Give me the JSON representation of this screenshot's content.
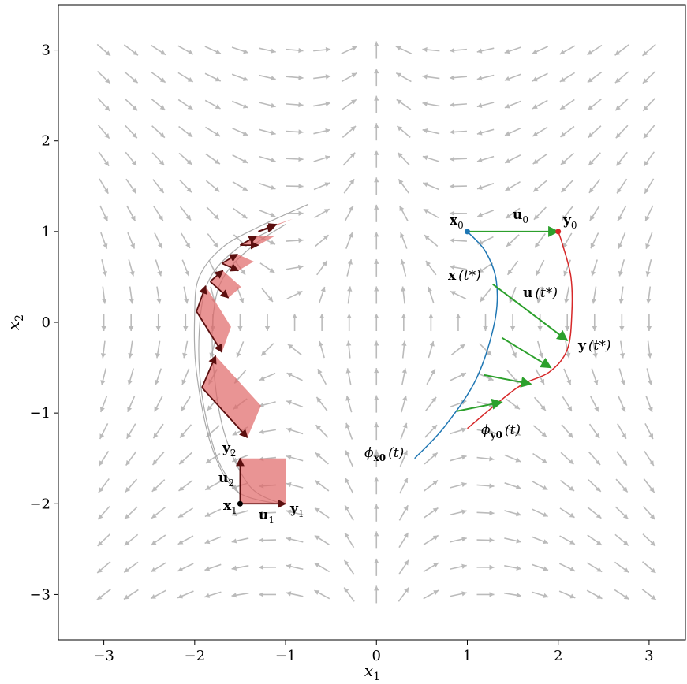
{
  "chart_data": {
    "type": "quiver",
    "xlabel": "x1",
    "ylabel": "x2",
    "xlim": [
      -3.5,
      3.4
    ],
    "ylim": [
      -3.5,
      3.5
    ],
    "xticks": [
      -3,
      -2,
      -1,
      0,
      1,
      2,
      3
    ],
    "yticks": [
      -3,
      -2,
      -1,
      0,
      1,
      2,
      3
    ],
    "xtick_labels": [
      "−3",
      "−2",
      "−1",
      "0",
      "1",
      "2",
      "3"
    ],
    "ytick_labels": [
      "−3",
      "−2",
      "−1",
      "0",
      "1",
      "2",
      "3"
    ],
    "grid": false,
    "colors": {
      "vector_field": "#bbbbbb",
      "trajectory_x": "#1f77b4",
      "trajectory_y": "#d62728",
      "displacement": "#2ca02c",
      "parallelogram_fill": "#e06666",
      "frame_vectors": "#5b0f0f",
      "gray_trajectory": "#aaaaaa"
    },
    "vector_field": {
      "x_start": -3,
      "x_end": 3,
      "y_start": -3,
      "y_end": 3,
      "n": 21,
      "field": "u = -1.1*x1*x2 ; v = 1 - x1^2 - 0.15*x2 (normalized)"
    },
    "series": [
      {
        "name": "phi_x0",
        "points": [
          [
            0.42,
            -1.5
          ],
          [
            0.75,
            -1.15
          ],
          [
            1.1,
            -0.62
          ],
          [
            1.3,
            0.0
          ],
          [
            1.32,
            0.45
          ],
          [
            1.2,
            0.78
          ],
          [
            1.0,
            1.0
          ]
        ]
      },
      {
        "name": "phi_y0",
        "points": [
          [
            1.0,
            -1.17
          ],
          [
            1.55,
            -0.72
          ],
          [
            1.9,
            -0.55
          ],
          [
            2.1,
            -0.3
          ],
          [
            2.15,
            0.1
          ],
          [
            2.14,
            0.5
          ],
          [
            2.05,
            0.85
          ],
          [
            2.0,
            1.0
          ]
        ]
      },
      {
        "name": "gray_a",
        "points": [
          [
            -1.1,
            -2.0
          ],
          [
            -1.55,
            -1.85
          ],
          [
            -1.82,
            -1.35
          ],
          [
            -1.98,
            -0.55
          ],
          [
            -2.0,
            0.1
          ],
          [
            -1.95,
            0.5
          ],
          [
            -1.7,
            0.82
          ],
          [
            -1.3,
            1.05
          ],
          [
            -0.75,
            1.3
          ]
        ]
      },
      {
        "name": "gray_b",
        "points": [
          [
            -1.05,
            -2.0
          ],
          [
            -1.4,
            -1.8
          ],
          [
            -1.68,
            -1.2
          ],
          [
            -1.8,
            -0.4
          ],
          [
            -1.78,
            0.2
          ],
          [
            -1.65,
            0.55
          ],
          [
            -1.35,
            0.85
          ],
          [
            -1.0,
            1.08
          ]
        ]
      },
      {
        "name": "gray_c",
        "points": [
          [
            -1.5,
            -1.9
          ],
          [
            -1.75,
            -1.5
          ],
          [
            -1.92,
            -0.8
          ],
          [
            -1.95,
            -0.1
          ],
          [
            -1.85,
            0.45
          ],
          [
            -1.55,
            0.8
          ],
          [
            -1.15,
            1.02
          ]
        ]
      }
    ],
    "displacement_arrows": [
      {
        "from": [
          1.0,
          1.0
        ],
        "to": [
          2.0,
          1.0
        ]
      },
      {
        "from": [
          1.28,
          0.42
        ],
        "to": [
          2.1,
          -0.2
        ]
      },
      {
        "from": [
          1.38,
          -0.17
        ],
        "to": [
          1.92,
          -0.5
        ]
      },
      {
        "from": [
          1.18,
          -0.58
        ],
        "to": [
          1.7,
          -0.68
        ]
      },
      {
        "from": [
          0.88,
          -0.98
        ],
        "to": [
          1.38,
          -0.88
        ]
      }
    ],
    "points": [
      {
        "name": "x0",
        "x": 1.0,
        "y": 1.0,
        "color": "#1f77b4"
      },
      {
        "name": "y0",
        "x": 2.0,
        "y": 1.0,
        "color": "#d62728"
      },
      {
        "name": "x1",
        "x": -1.5,
        "y": -2.0,
        "color": "#000000"
      }
    ],
    "parallelograms": [
      {
        "p": [
          -1.5,
          -2.0
        ],
        "a": [
          0.5,
          0.0
        ],
        "b": [
          0.0,
          0.5
        ]
      },
      {
        "p": [
          -1.92,
          -0.72
        ],
        "a": [
          0.5,
          -0.55
        ],
        "b": [
          0.15,
          0.35
        ]
      },
      {
        "p": [
          -1.98,
          0.12
        ],
        "a": [
          0.28,
          -0.45
        ],
        "b": [
          0.1,
          0.28
        ]
      },
      {
        "p": [
          -1.83,
          0.45
        ],
        "a": [
          0.2,
          -0.18
        ],
        "b": [
          0.14,
          0.12
        ]
      },
      {
        "p": [
          -1.7,
          0.65
        ],
        "a": [
          0.18,
          -0.08
        ],
        "b": [
          0.17,
          0.1
        ]
      },
      {
        "p": [
          -1.5,
          0.85
        ],
        "a": [
          0.2,
          0.0
        ],
        "b": [
          0.18,
          0.1
        ]
      },
      {
        "p": [
          -1.3,
          1.0
        ],
        "a": [
          0.2,
          0.08
        ],
        "b": [
          0.18,
          0.06
        ]
      }
    ],
    "annotations": {
      "x0_label": "x",
      "x0_sub": "0",
      "u0_label": "u",
      "u0_sub": "0",
      "y0_label": "y",
      "y0_sub": "0",
      "xt_label": "x",
      "xt_arg": "(t*)",
      "ut_label": "u",
      "ut_arg": "(t*)",
      "yt_label": "y",
      "yt_arg": "(t*)",
      "phix_label": "ϕ",
      "phix_sub": "x0",
      "phix_arg": "(t)",
      "phiy_label": "ϕ",
      "phiy_sub": "y0",
      "phiy_arg": "(t)",
      "x1_label": "x",
      "x1_sub": "1",
      "y1_label": "y",
      "y1_sub": "1",
      "u1_label": "u",
      "u1_sub": "1",
      "y2_label": "y",
      "y2_sub": "2",
      "u2_label": "u",
      "u2_sub": "2"
    }
  }
}
